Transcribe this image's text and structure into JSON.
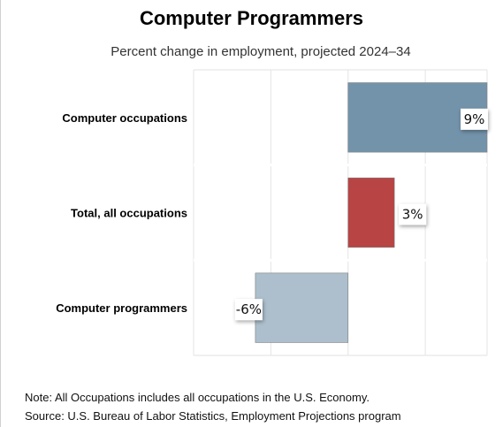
{
  "chart_data": {
    "type": "bar",
    "orientation": "horizontal",
    "title": "Computer Programmers",
    "subtitle": "Percent change in employment, projected 2024–34",
    "categories": [
      "Computer occupations",
      "Total, all occupations",
      "Computer programmers"
    ],
    "values": [
      9,
      3,
      -6
    ],
    "value_labels": [
      "9%",
      "3%",
      "-6%"
    ],
    "colors": [
      "#7393ab",
      "#b84444",
      "#adbfcc"
    ],
    "xlim": [
      -10,
      9
    ],
    "grid": true,
    "legend": "none"
  },
  "notes": {
    "note": "Note: All Occupations includes all occupations in the U.S. Economy.",
    "source": "Source: U.S. Bureau of Labor Statistics, Employment Projections program"
  }
}
